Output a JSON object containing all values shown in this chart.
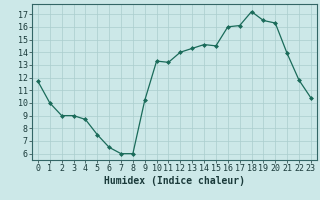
{
  "x": [
    0,
    1,
    2,
    3,
    4,
    5,
    6,
    7,
    8,
    9,
    10,
    11,
    12,
    13,
    14,
    15,
    16,
    17,
    18,
    19,
    20,
    21,
    22,
    23
  ],
  "y": [
    11.7,
    10.0,
    9.0,
    9.0,
    8.7,
    7.5,
    6.5,
    6.0,
    6.0,
    10.2,
    13.3,
    13.2,
    14.0,
    14.3,
    14.6,
    14.5,
    16.0,
    16.1,
    17.2,
    16.5,
    16.3,
    13.9,
    11.8,
    10.4
  ],
  "line_color": "#1a6b5a",
  "marker": "D",
  "markersize": 2.0,
  "linewidth": 0.9,
  "xlabel": "Humidex (Indice chaleur)",
  "ylabel_ticks": [
    6,
    7,
    8,
    9,
    10,
    11,
    12,
    13,
    14,
    15,
    16,
    17
  ],
  "ylim": [
    5.5,
    17.8
  ],
  "xlim": [
    -0.5,
    23.5
  ],
  "bg_color": "#cce8e8",
  "grid_color": "#aacece",
  "xlabel_fontsize": 7,
  "tick_fontsize": 6
}
